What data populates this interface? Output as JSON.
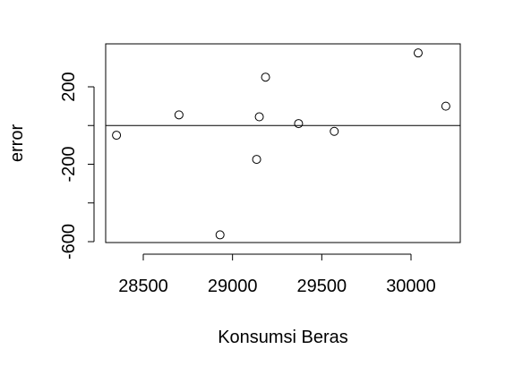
{
  "chart_data": {
    "type": "scatter",
    "title": "",
    "xlabel": "Konsumsi Beras",
    "ylabel": "error",
    "xlim": [
      28300,
      30250
    ],
    "ylim": [
      -600,
      380
    ],
    "x_ticks": [
      28500,
      29000,
      29500,
      30000
    ],
    "x_tick_labels": [
      "28500",
      "29000",
      "29500",
      "30000"
    ],
    "y_ticks": [
      -600,
      -400,
      -200,
      0,
      200
    ],
    "y_tick_labels": [
      "-600",
      "",
      "-200",
      "",
      "200"
    ],
    "reference_line": 0,
    "grid": false,
    "points": [
      {
        "x": 28350,
        "y": -50
      },
      {
        "x": 28700,
        "y": 55
      },
      {
        "x": 28930,
        "y": -565
      },
      {
        "x": 29135,
        "y": -175
      },
      {
        "x": 29150,
        "y": 45
      },
      {
        "x": 29185,
        "y": 250
      },
      {
        "x": 29370,
        "y": 10
      },
      {
        "x": 29570,
        "y": -30
      },
      {
        "x": 30040,
        "y": 375
      },
      {
        "x": 30195,
        "y": 100
      }
    ]
  }
}
